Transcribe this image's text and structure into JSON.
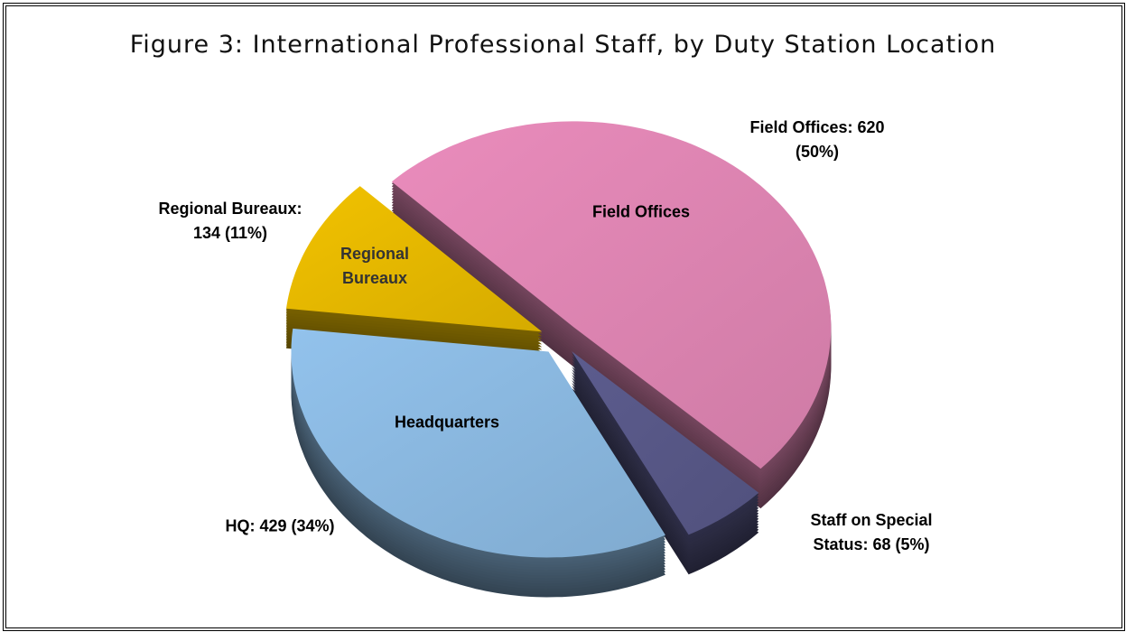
{
  "chart_data": {
    "type": "pie",
    "title": "Figure 3: International Professional Staff, by Duty Station Location",
    "categories": [
      "Field Offices",
      null,
      "Headquarters",
      "Regional Bureaux"
    ],
    "values": [
      620,
      68,
      429,
      134
    ],
    "value_labels": [
      "Field Offices: 620 (50%)",
      "Staff on Special Status: 68 (5%)",
      "HQ: 429 (34%)",
      "Regional Bureaux: 134 (11%)"
    ],
    "colors": [
      "#ea8cbc",
      "#5c5c8e",
      "#92c2ec",
      "#f2c200"
    ]
  }
}
